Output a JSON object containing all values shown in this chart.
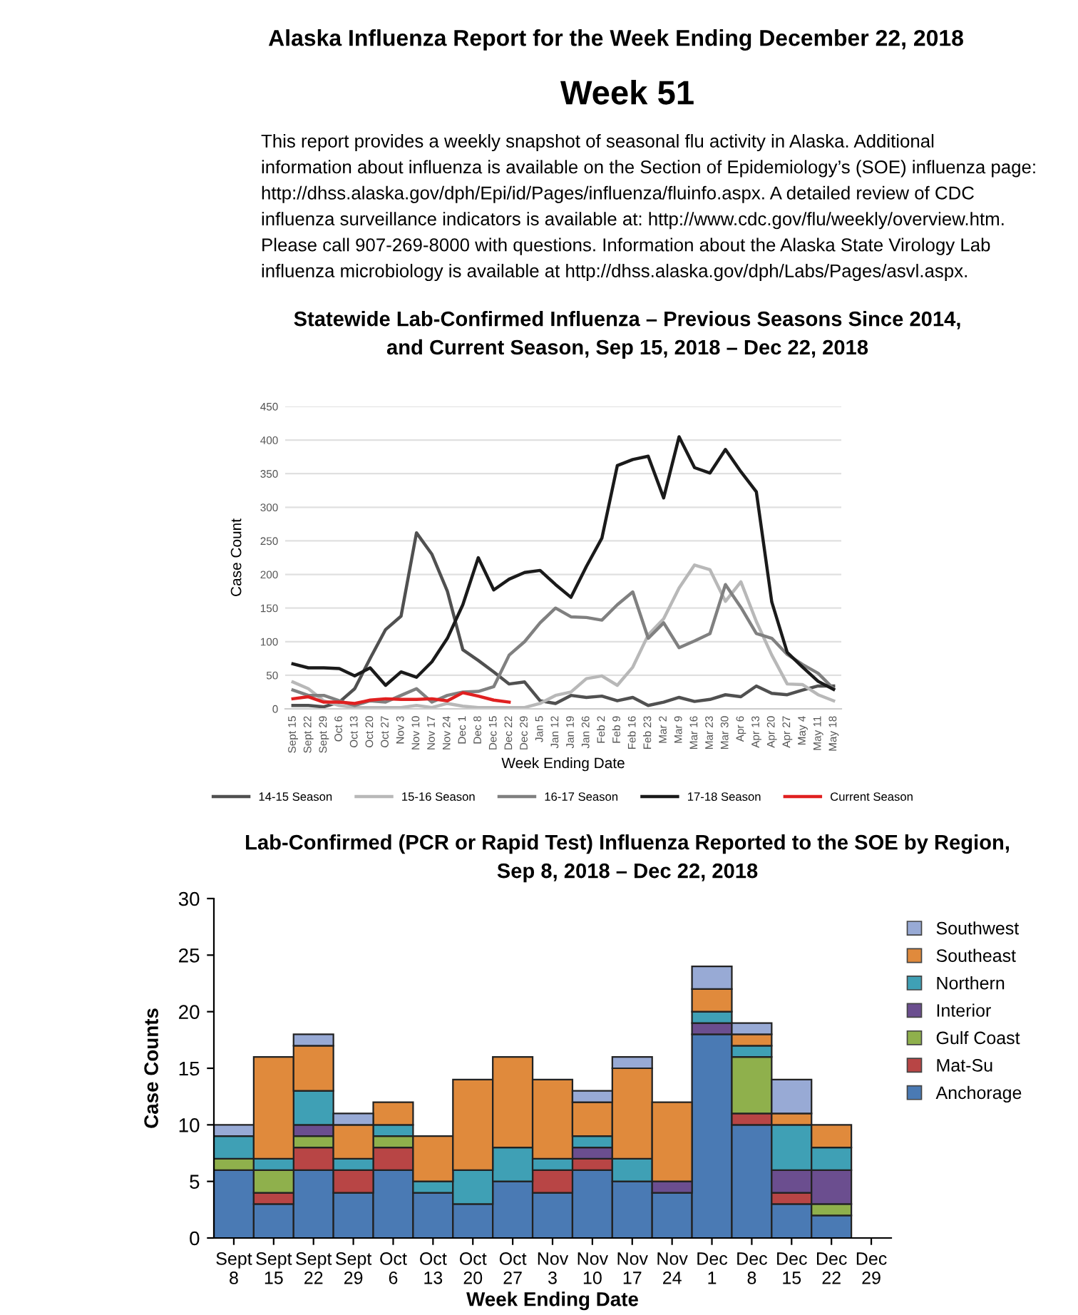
{
  "chart_data": [
    {
      "type": "line",
      "title": "Statewide Lab-Confirmed Influenza – Previous Seasons Since 2014,\nand Current Season, Sep 15, 2018 – Dec 22, 2018",
      "annotations": [
        "Alaska Influenza Report for the Week Ending December 22, 2018",
        "Week 51",
        "This report provides a weekly snapshot of seasonal flu activity in Alaska. Additional",
        "information about influenza is available on the Section of Epidemiology’s (SOE) influenza page:",
        "http://dhss.alaska.gov/dph/Epi/id/Pages/influenza/fluinfo.aspx. A detailed review of CDC",
        "influenza surveillance indicators is available at: http://www.cdc.gov/flu/weekly/overview.htm.",
        "Please call 907-269-8000 with questions. Information about the Alaska State Virology Lab",
        "influenza microbiology is available at http://dhss.alaska.gov/dph/Labs/Pages/asvl.aspx."
      ],
      "xlabel": "Week Ending Date",
      "ylabel": "Case Count",
      "categories": [
        "Sept 15",
        "Sept 22",
        "Sept 29",
        "Oct 6",
        "Oct 13",
        "Oct 20",
        "Oct 27",
        "Nov 3",
        "Nov 10",
        "Nov 17",
        "Nov 24",
        "Dec 1",
        "Dec 8",
        "Dec 15",
        "Dec 22",
        "Dec 29",
        "Jan 5",
        "Jan 12",
        "Jan 19",
        "Jan 26",
        "Feb 2",
        "Feb 9",
        "Feb 16",
        "Feb 23",
        "Mar 2",
        "Mar 9",
        "Mar 16",
        "Mar 23",
        "Mar 30",
        "Apr 6",
        "Apr 13",
        "Apr 20",
        "Apr 27",
        "May 4",
        "May 11",
        "May 18"
      ],
      "ylim": [
        0,
        450
      ],
      "yticks": [
        0,
        50,
        100,
        150,
        200,
        250,
        300,
        350,
        400,
        450
      ],
      "grid": "y",
      "legend": "bottom",
      "marker": "none",
      "line_style": "solid",
      "series": [
        {
          "name": "14-15 Season",
          "color": "#505050",
          "values": [
            5,
            5,
            3,
            10,
            30,
            75,
            118,
            138,
            262,
            230,
            175,
            88,
            72,
            55,
            37,
            40,
            12,
            8,
            20,
            17,
            19,
            12,
            17,
            5,
            10,
            17,
            11,
            14,
            21,
            18,
            34,
            23,
            21,
            28,
            34,
            34
          ]
        },
        {
          "name": "15-16 Season",
          "color": "#b8b8b8",
          "values": [
            40,
            30,
            12,
            5,
            2,
            2,
            2,
            2,
            5,
            2,
            8,
            4,
            2,
            2,
            2,
            2,
            8,
            20,
            25,
            45,
            49,
            35,
            62,
            110,
            134,
            180,
            214,
            207,
            160,
            189,
            130,
            80,
            37,
            36,
            21,
            12
          ]
        },
        {
          "name": "16-17 Season",
          "color": "#808080",
          "values": [
            28,
            20,
            20,
            12,
            5,
            12,
            10,
            20,
            30,
            10,
            20,
            25,
            26,
            33,
            80,
            100,
            128,
            150,
            137,
            136,
            132,
            155,
            174,
            105,
            128,
            91,
            101,
            112,
            185,
            151,
            112,
            105,
            81,
            66,
            53,
            30
          ]
        },
        {
          "name": "17-18 Season",
          "color": "#1a1a1a",
          "values": [
            67,
            61,
            61,
            60,
            49,
            61,
            35,
            55,
            47,
            70,
            105,
            155,
            225,
            177,
            193,
            203,
            206,
            185,
            166,
            212,
            254,
            362,
            371,
            376,
            314,
            405,
            359,
            351,
            386,
            353,
            323,
            159,
            84,
            62,
            41,
            29
          ]
        },
        {
          "name": "Current Season",
          "color": "#e02020",
          "values": [
            15,
            18,
            10,
            10,
            8,
            13,
            15,
            14,
            14,
            15,
            12,
            24,
            19,
            13,
            10,
            null,
            null,
            null,
            null,
            null,
            null,
            null,
            null,
            null,
            null,
            null,
            null,
            null,
            null,
            null,
            null,
            null,
            null,
            null,
            null,
            null
          ]
        }
      ]
    },
    {
      "type": "bar",
      "stacked": true,
      "title": "Lab-Confirmed (PCR or Rapid Test) Influenza Reported to the SOE by Region,\nSep 8, 2018 – Dec 22, 2018",
      "xlabel": "Week Ending Date",
      "ylabel": "Case Counts",
      "categories": [
        "Sept\n8",
        "Sept\n15",
        "Sept\n22",
        "Sept\n29",
        "Oct\n6",
        "Oct\n13",
        "Oct\n20",
        "Oct\n27",
        "Nov\n3",
        "Nov\n10",
        "Nov\n17",
        "Nov\n24",
        "Dec\n1",
        "Dec\n8",
        "Dec\n15",
        "Dec\n22",
        "Dec\n29"
      ],
      "ylim": [
        0,
        30
      ],
      "yticks": [
        0,
        5,
        10,
        15,
        20,
        25,
        30
      ],
      "legend": "right",
      "series": [
        {
          "name": "Anchorage",
          "color": "#4a7ab4",
          "values": [
            6,
            3,
            6,
            4,
            6,
            4,
            3,
            5,
            4,
            6,
            5,
            4,
            18,
            10,
            3,
            2,
            null
          ]
        },
        {
          "name": "Mat-Su",
          "color": "#b84545",
          "values": [
            0,
            1,
            2,
            2,
            2,
            0,
            0,
            0,
            2,
            1,
            0,
            0,
            0,
            1,
            1,
            0,
            null
          ]
        },
        {
          "name": "Gulf Coast",
          "color": "#8fb04c",
          "values": [
            1,
            2,
            1,
            0,
            1,
            0,
            0,
            0,
            0,
            0,
            0,
            0,
            0,
            5,
            0,
            1,
            null
          ]
        },
        {
          "name": "Interior",
          "color": "#6b4e8f",
          "values": [
            0,
            0,
            1,
            0,
            0,
            0,
            0,
            0,
            0,
            1,
            0,
            1,
            1,
            0,
            2,
            3,
            null
          ]
        },
        {
          "name": "Northern",
          "color": "#3fa0b5",
          "values": [
            2,
            1,
            3,
            1,
            1,
            1,
            3,
            3,
            1,
            1,
            2,
            0,
            1,
            1,
            4,
            2,
            null
          ]
        },
        {
          "name": "Southeast",
          "color": "#e08a3c",
          "values": [
            0,
            9,
            4,
            3,
            2,
            4,
            8,
            8,
            7,
            3,
            8,
            7,
            2,
            1,
            1,
            2,
            null
          ]
        },
        {
          "name": "Southwest",
          "color": "#98aad5",
          "values": [
            1,
            0,
            1,
            1,
            0,
            0,
            0,
            0,
            0,
            1,
            1,
            0,
            2,
            1,
            3,
            0,
            null
          ]
        }
      ]
    }
  ]
}
